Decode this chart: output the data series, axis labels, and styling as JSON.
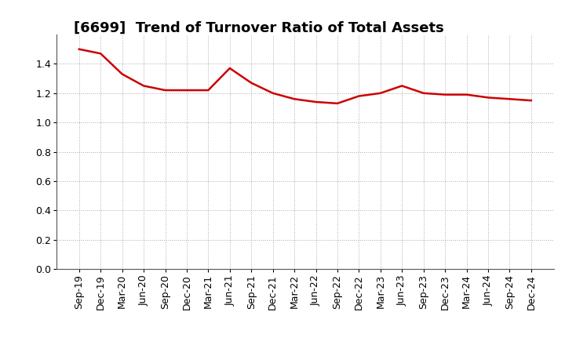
{
  "title": "[6699]  Trend of Turnover Ratio of Total Assets",
  "line_color": "#cc0000",
  "line_width": 1.8,
  "background_color": "#ffffff",
  "grid_color": "#aaaaaa",
  "ylim": [
    0.0,
    1.6
  ],
  "yticks": [
    0.0,
    0.2,
    0.4,
    0.6,
    0.8,
    1.0,
    1.2,
    1.4
  ],
  "x_labels": [
    "Sep-19",
    "Dec-19",
    "Mar-20",
    "Jun-20",
    "Sep-20",
    "Dec-20",
    "Mar-21",
    "Jun-21",
    "Sep-21",
    "Dec-21",
    "Mar-22",
    "Jun-22",
    "Sep-22",
    "Dec-22",
    "Mar-23",
    "Jun-23",
    "Sep-23",
    "Dec-23",
    "Mar-24",
    "Jun-24",
    "Sep-24",
    "Dec-24"
  ],
  "values": [
    1.5,
    1.47,
    1.33,
    1.25,
    1.22,
    1.22,
    1.22,
    1.37,
    1.27,
    1.2,
    1.16,
    1.14,
    1.13,
    1.18,
    1.2,
    1.25,
    1.2,
    1.19,
    1.19,
    1.17,
    1.16,
    1.15
  ],
  "title_fontsize": 13,
  "tick_fontsize": 9
}
